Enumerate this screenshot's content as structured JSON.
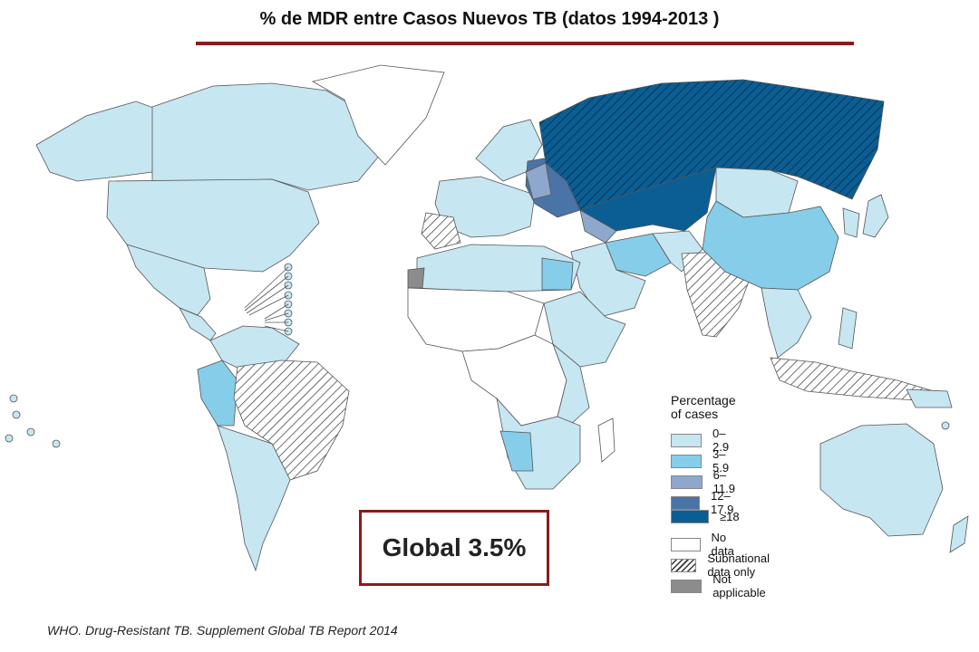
{
  "title": "% de MDR entre Casos Nuevos TB (datos 1994-2013 )",
  "colors": {
    "cat_0_2_9": "#c6e6f2",
    "cat_3_5_9": "#86cde9",
    "cat_6_11_9": "#8ea7cc",
    "cat_12_17_9": "#4a73a8",
    "cat_18": "#0b5e93",
    "no_data": "#ffffff",
    "not_applicable": "#8c8c8c",
    "border": "#555555",
    "accent": "#8b1a1a"
  },
  "legend": {
    "heading_line1": "Percentage",
    "heading_line2": "of cases",
    "items": [
      {
        "label": "0–2.9",
        "color": "#c6e6f2",
        "hatch": false
      },
      {
        "label": "3–5.9",
        "color": "#86cde9",
        "hatch": false
      },
      {
        "label": "6–11.9",
        "color": "#8ea7cc",
        "hatch": false
      },
      {
        "label": "12–17.9",
        "color": "#4a73a8",
        "hatch": false
      },
      {
        "label": "≥18",
        "color": "#0b5e93",
        "hatch": false
      },
      {
        "label": "No data",
        "color": "#ffffff",
        "hatch": false
      },
      {
        "label": "Subnational data only",
        "color": "#ffffff",
        "hatch": true
      },
      {
        "label": "Not applicable",
        "color": "#8c8c8c",
        "hatch": false
      }
    ]
  },
  "global_label": "Global 3.5%",
  "source": "WHO. Drug-Resistant TB. Supplement Global TB Report 2014"
}
